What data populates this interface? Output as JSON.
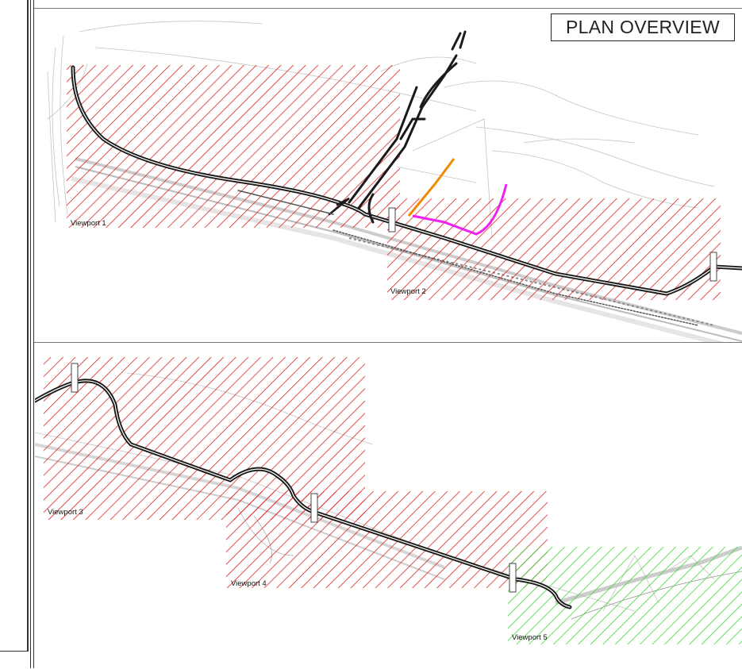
{
  "title": "PLAN OVERVIEW",
  "viewports": [
    {
      "label": "Viewport 1",
      "status": "red"
    },
    {
      "label": "Viewport 2",
      "status": "red"
    },
    {
      "label": "Viewport 3",
      "status": "red"
    },
    {
      "label": "Viewport 4",
      "status": "red"
    },
    {
      "label": "Viewport 5",
      "status": "green"
    }
  ],
  "colors": {
    "hatch_red": "#e02020",
    "hatch_green": "#33dd33",
    "alignment": "#1a1a1a",
    "highlight_orange": "#f08a00",
    "highlight_magenta": "#ee22ee",
    "background_linework": "#b8b8b8"
  }
}
